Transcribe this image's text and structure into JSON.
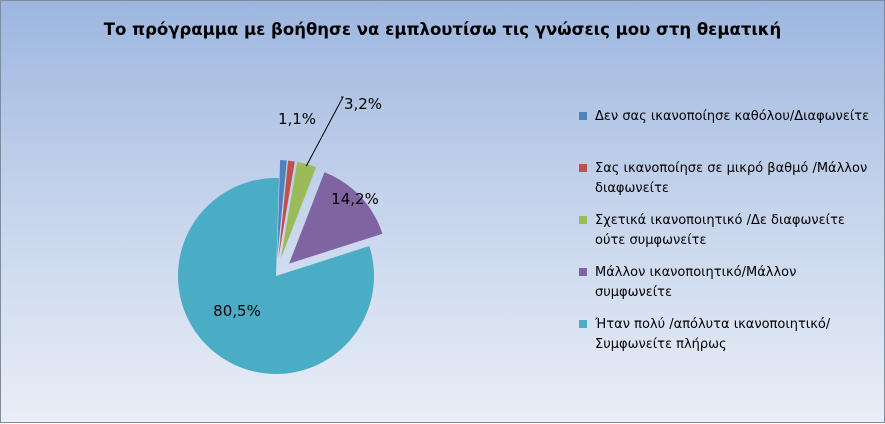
{
  "chart_data": {
    "type": "pie",
    "title": "Το πρόγραμμα με βοήθησε να εμπλουτίσω τις γνώσεις μου στη θεματική",
    "categories": [
      "Δεν σας ικανοποίησε καθόλου/Διαφωνείτε",
      "Σας ικανοποίησε σε μικρό βαθμό /Μάλλον διαφωνείτε",
      "Σχετικά ικανοποιητικό /Δε διαφωνείτε ούτε συμφωνείτε",
      "Μάλλον ικανοποιητικό/Μάλλον συμφωνείτε",
      "Ήταν πολύ /απόλυτα ικανοποιητικό/Συμφωνείτε πλήρως"
    ],
    "values": [
      1.1,
      1.1,
      3.2,
      14.2,
      80.5
    ],
    "data_labels": [
      "",
      "1,1%",
      "3,2%",
      "14,2%",
      "80,5%"
    ],
    "colors": [
      "#4f81bd",
      "#c0504d",
      "#9bbb59",
      "#8064a2",
      "#4bacc6"
    ],
    "legend_position": "right",
    "exploded": true
  }
}
